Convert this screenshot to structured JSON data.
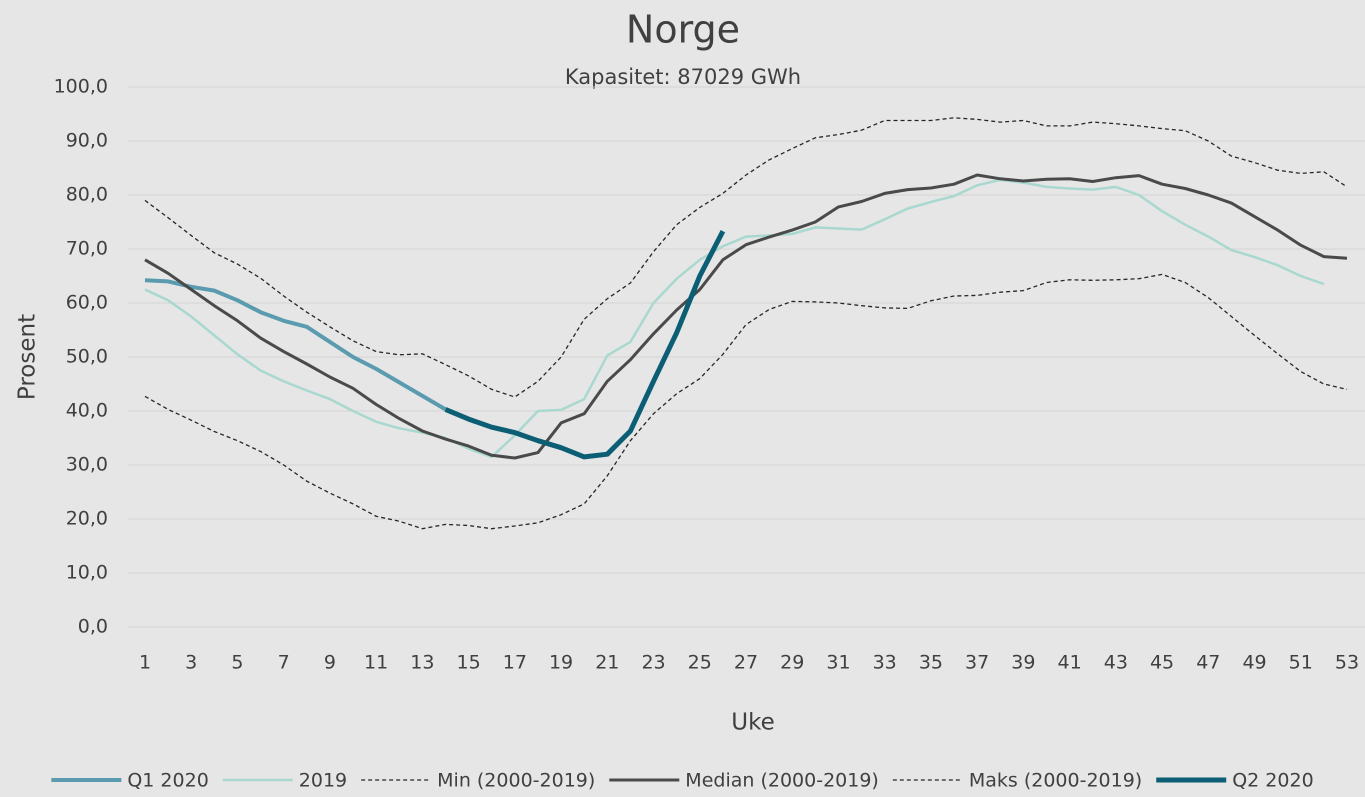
{
  "chart_data": {
    "type": "line",
    "title": "Norge",
    "subtitle": "Kapasitet: 87029 GWh",
    "x_label": "Uke",
    "y_label": "Prosent",
    "x": [
      1,
      2,
      3,
      4,
      5,
      6,
      7,
      8,
      9,
      10,
      11,
      12,
      13,
      14,
      15,
      16,
      17,
      18,
      19,
      20,
      21,
      22,
      23,
      24,
      25,
      26,
      27,
      28,
      29,
      30,
      31,
      32,
      33,
      34,
      35,
      36,
      37,
      38,
      39,
      40,
      41,
      42,
      43,
      44,
      45,
      46,
      47,
      48,
      49,
      50,
      51,
      52,
      53
    ],
    "xlim": [
      1,
      53
    ],
    "xticks": [
      1,
      3,
      5,
      7,
      9,
      11,
      13,
      15,
      17,
      19,
      21,
      23,
      25,
      27,
      29,
      31,
      33,
      35,
      37,
      39,
      41,
      43,
      45,
      47,
      49,
      51,
      53
    ],
    "ylim": [
      0,
      100
    ],
    "yticks": [
      {
        "value": 0,
        "label": "0,0"
      },
      {
        "value": 10,
        "label": "10,0"
      },
      {
        "value": 20,
        "label": "20,0"
      },
      {
        "value": 30,
        "label": "30,0"
      },
      {
        "value": 40,
        "label": "40,0"
      },
      {
        "value": 50,
        "label": "50,0"
      },
      {
        "value": 60,
        "label": "60,0"
      },
      {
        "value": 70,
        "label": "70,0"
      },
      {
        "value": 80,
        "label": "80,0"
      },
      {
        "value": 90,
        "label": "90,0"
      },
      {
        "value": 100,
        "label": "100,0"
      }
    ],
    "grid": true,
    "legend": "bottom",
    "series": [
      {
        "name": "Q1 2020",
        "color": "#5a9bb0",
        "width": 4,
        "dash": false,
        "values": [
          64.2,
          64.0,
          63.0,
          62.3,
          60.5,
          58.3,
          56.7,
          55.6,
          52.8,
          50.0,
          47.8,
          45.3,
          42.8,
          40.3,
          null,
          null,
          null,
          null,
          null,
          null,
          null,
          null,
          null,
          null,
          null,
          null,
          null,
          null,
          null,
          null,
          null,
          null,
          null,
          null,
          null,
          null,
          null,
          null,
          null,
          null,
          null,
          null,
          null,
          null,
          null,
          null,
          null,
          null,
          null,
          null,
          null,
          null,
          null
        ]
      },
      {
        "name": "2019",
        "color": "#a8d8cf",
        "width": 2.5,
        "dash": false,
        "values": [
          62.5,
          60.5,
          57.5,
          54,
          50.5,
          47.5,
          45.5,
          43.8,
          42.2,
          40,
          38,
          36.8,
          36,
          35,
          33,
          31.5,
          35.5,
          40,
          40.2,
          42.2,
          50.3,
          52.8,
          60,
          64.5,
          68,
          70.5,
          72.3,
          72.5,
          72.8,
          74,
          73.8,
          73.6,
          75.5,
          77.5,
          78.7,
          79.8,
          81.8,
          82.8,
          82.3,
          81.5,
          81.2,
          81,
          81.5,
          80,
          77,
          74.5,
          72.3,
          69.8,
          68.5,
          67,
          65,
          63.5,
          null
        ]
      },
      {
        "name": "Min (2000-2019)",
        "color": "#262626",
        "width": 1.3,
        "dash": true,
        "values": [
          42.7,
          40.3,
          38.3,
          36.2,
          34.5,
          32.5,
          30,
          27,
          24.8,
          22.8,
          20.5,
          19.6,
          18.2,
          19,
          18.8,
          18.2,
          18.7,
          19.3,
          20.8,
          22.8,
          28,
          34.5,
          39.5,
          43.2,
          46,
          50.5,
          56,
          58.8,
          60.3,
          60.2,
          60,
          59.5,
          59.1,
          59,
          60.4,
          61.3,
          61.4,
          62,
          62.3,
          63.8,
          64.3,
          64.2,
          64.3,
          64.5,
          65.3,
          63.8,
          61,
          57.5,
          54,
          50.6,
          47.3,
          45,
          44
        ]
      },
      {
        "name": "Median (2000-2019)",
        "color": "#4a4a4a",
        "width": 3,
        "dash": false,
        "values": [
          68,
          65.5,
          62.5,
          59.5,
          56.7,
          53.5,
          51,
          48.7,
          46.3,
          44.2,
          41.2,
          38.6,
          36.3,
          34.8,
          33.5,
          31.8,
          31.3,
          32.3,
          37.8,
          39.5,
          45.5,
          49.5,
          54.3,
          58.7,
          62.5,
          68,
          70.8,
          72.2,
          73.5,
          75,
          77.8,
          78.8,
          80.3,
          81,
          81.3,
          82,
          83.7,
          83,
          82.6,
          82.9,
          83,
          82.5,
          83.2,
          83.6,
          82,
          81.2,
          80,
          78.5,
          76,
          73.5,
          70.7,
          68.6,
          68.3
        ]
      },
      {
        "name": "Maks (2000-2019)",
        "color": "#262626",
        "width": 1.3,
        "dash": true,
        "values": [
          79,
          75.8,
          72.5,
          69.3,
          67.2,
          64.6,
          61.3,
          58.3,
          55.6,
          53,
          51,
          50.4,
          50.6,
          48.6,
          46.5,
          44,
          42.6,
          45.5,
          50,
          57,
          60.8,
          63.7,
          69.5,
          74.5,
          77.7,
          80.3,
          83.7,
          86.5,
          88.6,
          90.6,
          91.2,
          92,
          93.8,
          93.8,
          93.8,
          94.3,
          94,
          93.5,
          93.8,
          92.8,
          92.8,
          93.5,
          93.2,
          92.8,
          92.3,
          91.9,
          90,
          87.2,
          86,
          84.6,
          84,
          84.3,
          81.5
        ]
      },
      {
        "name": "Q2 2020",
        "color": "#0b5e74",
        "width": 5,
        "dash": false,
        "values": [
          null,
          null,
          null,
          null,
          null,
          null,
          null,
          null,
          null,
          null,
          null,
          null,
          null,
          40.3,
          38.5,
          37,
          36,
          34.5,
          33.2,
          31.5,
          32,
          36.3,
          45.5,
          54.5,
          65,
          73.3,
          null,
          null,
          null,
          null,
          null,
          null,
          null,
          null,
          null,
          null,
          null,
          null,
          null,
          null,
          null,
          null,
          null,
          null,
          null,
          null,
          null,
          null,
          null,
          null,
          null,
          null,
          null
        ]
      }
    ]
  }
}
